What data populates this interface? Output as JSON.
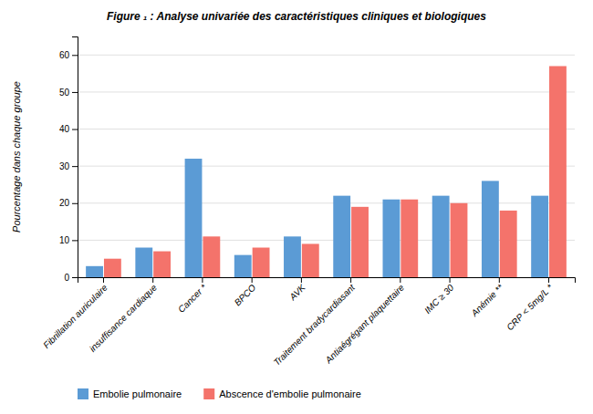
{
  "chart_data": {
    "type": "bar",
    "title": "Figure ₁ : Analyse univariée des caractéristiques cliniques et biologiques",
    "categories": [
      "Fibrillation auriculaire",
      "insuffisance cardiaque",
      "Cancer *",
      "BPCO",
      "AVK",
      "Traitement bradycardiasant",
      "Antiaégrégant plaquettaire",
      "IMC ≥ 30",
      "Anémie **",
      "CRP < 5mg/L *"
    ],
    "series": [
      {
        "name": "Embolie pulmonaire",
        "color": "#5b9bd5",
        "values": [
          3,
          8,
          32,
          6,
          11,
          22,
          21,
          22,
          26,
          22
        ]
      },
      {
        "name": "Abscence d'embolie pulmonaire",
        "color": "#f4736b",
        "values": [
          5,
          7,
          11,
          8,
          9,
          19,
          21,
          20,
          18,
          57
        ]
      }
    ],
    "y_label": "Pourcentage dans chaque groupe",
    "ylim": [
      0,
      65
    ],
    "yticks": [
      0,
      10,
      20,
      30,
      40,
      50,
      60
    ],
    "grid": true,
    "legend": "bottom"
  }
}
